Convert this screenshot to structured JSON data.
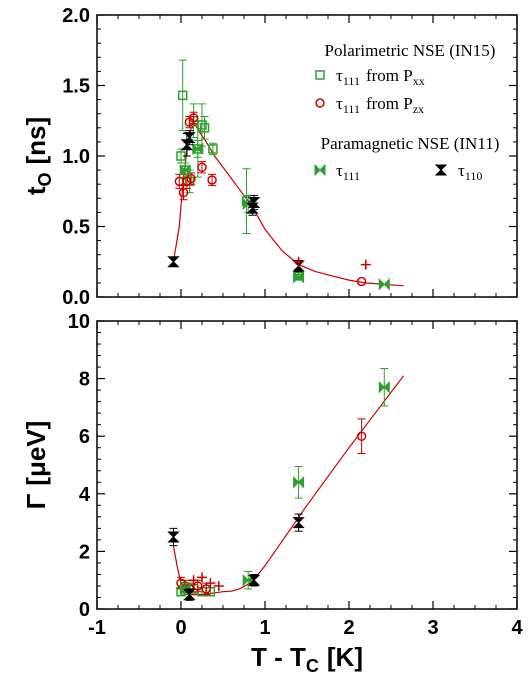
{
  "chart_data": [
    {
      "type": "scatter",
      "panel": "top",
      "ylabel": "t",
      "ylabel_sub": "O",
      "ylabel_unit": "[ns]",
      "ylim": [
        0,
        2.0
      ],
      "yticks": [
        "0.0",
        "0.5",
        "1.0",
        "1.5",
        "2.0"
      ],
      "legend": {
        "group1_title": "Polarimetric NSE (IN15)",
        "group2_title": "Paramagnetic NSE (IN11)",
        "entries": [
          {
            "symbol": "τ",
            "sub": "111",
            "extra": "from P",
            "extra_sub": "xx",
            "marker": "square",
            "color": "#2ca02c"
          },
          {
            "symbol": "τ",
            "sub": "111",
            "extra": "from P",
            "extra_sub": "zx",
            "marker": "circle",
            "color": "#cc0000"
          },
          {
            "symbol": "τ",
            "sub": "111",
            "extra": "",
            "extra_sub": "",
            "marker": "bowtie",
            "color": "#2ca02c"
          },
          {
            "symbol": "τ",
            "sub": "110",
            "extra": "",
            "extra_sub": "",
            "marker": "hourglass",
            "color": "#000000"
          }
        ]
      },
      "series": [
        {
          "marker": "square",
          "color": "#2ca02c",
          "points": [
            {
              "x": 0.0,
              "y": 1.0,
              "e": 0.05
            },
            {
              "x": 0.02,
              "y": 1.43,
              "e": 0.25
            },
            {
              "x": 0.05,
              "y": 0.9,
              "e": 0.05
            },
            {
              "x": 0.1,
              "y": 0.82,
              "e": 0.08
            },
            {
              "x": 0.15,
              "y": 1.25,
              "e": 0.12
            },
            {
              "x": 0.2,
              "y": 1.05,
              "e": 0.2
            },
            {
              "x": 0.25,
              "y": 1.22,
              "e": 0.15
            },
            {
              "x": 0.28,
              "y": 1.2,
              "e": 0.08
            },
            {
              "x": 0.38,
              "y": 1.05,
              "e": 0.04
            },
            {
              "x": 0.78,
              "y": 0.68,
              "e": 0.23
            },
            {
              "x": 1.4,
              "y": 0.15,
              "e": 0.02
            }
          ]
        },
        {
          "marker": "circle",
          "color": "#cc0000",
          "points": [
            {
              "x": -0.02,
              "y": 0.82,
              "e": 0.05
            },
            {
              "x": 0.03,
              "y": 0.74,
              "e": 0.05
            },
            {
              "x": 0.07,
              "y": 0.82,
              "e": 0.05
            },
            {
              "x": 0.1,
              "y": 1.24,
              "e": 0.04
            },
            {
              "x": 0.12,
              "y": 0.84,
              "e": 0.04
            },
            {
              "x": 0.15,
              "y": 1.27,
              "e": 0.04
            },
            {
              "x": 0.25,
              "y": 0.92,
              "e": 0.04
            },
            {
              "x": 0.37,
              "y": 0.83,
              "e": 0.04
            },
            {
              "x": 2.15,
              "y": 0.11,
              "e": 0.0
            }
          ]
        },
        {
          "marker": "bowtie",
          "color": "#2ca02c",
          "points": [
            {
              "x": 0.05,
              "y": 0.9,
              "e": 0.03
            },
            {
              "x": 0.2,
              "y": 1.05,
              "e": 0.06
            },
            {
              "x": 0.8,
              "y": 0.66,
              "e": 0.06
            },
            {
              "x": 1.4,
              "y": 0.14,
              "e": 0.02
            },
            {
              "x": 2.42,
              "y": 0.09,
              "e": 0.0
            }
          ]
        },
        {
          "marker": "hourglass",
          "color": "#000000",
          "points": [
            {
              "x": -0.09,
              "y": 0.25,
              "e": 0.03
            },
            {
              "x": 0.07,
              "y": 1.08,
              "e": 0.08
            },
            {
              "x": 0.1,
              "y": 1.13,
              "e": 0.05
            },
            {
              "x": 0.85,
              "y": 0.63,
              "e": 0.05
            },
            {
              "x": 0.87,
              "y": 0.67,
              "e": 0.05
            },
            {
              "x": 1.4,
              "y": 0.22,
              "e": 0.04
            }
          ]
        },
        {
          "marker": "plus",
          "color": "#cc0000",
          "points": [
            {
              "x": 1.4,
              "y": 0.25,
              "e": 0.0
            },
            {
              "x": 2.2,
              "y": 0.23,
              "e": 0.0
            }
          ]
        }
      ],
      "fit": {
        "color": "#cc0000",
        "x": [
          -0.09,
          -0.02,
          0.03,
          0.08,
          0.12,
          0.17,
          0.22,
          0.3,
          0.4,
          0.55,
          0.7,
          0.85,
          1.0,
          1.2,
          1.4,
          1.6,
          1.8,
          2.0,
          2.2,
          2.4,
          2.65
        ],
        "y": [
          0.25,
          0.5,
          0.85,
          1.08,
          1.2,
          1.22,
          1.17,
          1.1,
          1.0,
          0.88,
          0.76,
          0.64,
          0.48,
          0.33,
          0.23,
          0.18,
          0.15,
          0.12,
          0.1,
          0.09,
          0.08
        ]
      }
    },
    {
      "type": "scatter",
      "panel": "bottom",
      "xlabel": "T - T",
      "xlabel_sub": "C",
      "xlabel_unit": "[K]",
      "ylabel": "Γ",
      "ylabel_unit": "[μeV]",
      "xlim": [
        -1,
        4
      ],
      "ylim": [
        0,
        10
      ],
      "xticks": [
        "-1",
        "0",
        "1",
        "2",
        "3",
        "4"
      ],
      "yticks": [
        "0",
        "2",
        "4",
        "6",
        "8",
        "10"
      ],
      "series": [
        {
          "marker": "square",
          "color": "#2ca02c",
          "points": [
            {
              "x": 0.0,
              "y": 0.6,
              "e": 0.15
            },
            {
              "x": 0.05,
              "y": 0.7,
              "e": 0.15
            },
            {
              "x": 0.15,
              "y": 0.7,
              "e": 0.15
            },
            {
              "x": 0.25,
              "y": 0.6,
              "e": 0.15
            },
            {
              "x": 0.35,
              "y": 0.6,
              "e": 0.15
            }
          ]
        },
        {
          "marker": "circle",
          "color": "#cc0000",
          "points": [
            {
              "x": 0.0,
              "y": 0.9,
              "e": 0.2
            },
            {
              "x": 0.05,
              "y": 0.8,
              "e": 0.2
            },
            {
              "x": 0.1,
              "y": 0.7,
              "e": 0.2
            },
            {
              "x": 0.2,
              "y": 0.8,
              "e": 0.2
            },
            {
              "x": 0.3,
              "y": 0.7,
              "e": 0.2
            },
            {
              "x": 2.15,
              "y": 6.0,
              "e": 0.6
            }
          ]
        },
        {
          "marker": "bowtie",
          "color": "#2ca02c",
          "points": [
            {
              "x": 0.05,
              "y": 0.7,
              "e": 0.2
            },
            {
              "x": 0.8,
              "y": 1.0,
              "e": 0.3
            },
            {
              "x": 1.4,
              "y": 4.4,
              "e": 0.55
            },
            {
              "x": 2.42,
              "y": 7.7,
              "e": 0.65
            }
          ]
        },
        {
          "marker": "hourglass",
          "color": "#000000",
          "points": [
            {
              "x": -0.09,
              "y": 2.5,
              "e": 0.3
            },
            {
              "x": 0.1,
              "y": 0.5,
              "e": 0.2
            },
            {
              "x": 0.87,
              "y": 1.0,
              "e": 0.2
            },
            {
              "x": 1.4,
              "y": 3.0,
              "e": 0.3
            }
          ]
        },
        {
          "marker": "plus",
          "color": "#cc0000",
          "points": [
            {
              "x": 0.15,
              "y": 1.0,
              "e": 0.0
            },
            {
              "x": 0.25,
              "y": 1.1,
              "e": 0.0
            },
            {
              "x": 0.35,
              "y": 0.9,
              "e": 0.0
            },
            {
              "x": 0.45,
              "y": 0.8,
              "e": 0.0
            }
          ]
        }
      ],
      "fit": {
        "color": "#cc0000",
        "x": [
          -0.09,
          -0.04,
          0.0,
          0.05,
          0.1,
          0.2,
          0.3,
          0.4,
          0.5,
          0.6,
          0.7,
          0.85,
          1.0,
          1.5,
          2.0,
          2.65
        ],
        "y": [
          2.2,
          1.4,
          0.9,
          0.6,
          0.5,
          0.5,
          0.52,
          0.56,
          0.6,
          0.62,
          0.7,
          0.95,
          1.5,
          3.6,
          5.6,
          8.1
        ]
      }
    }
  ]
}
